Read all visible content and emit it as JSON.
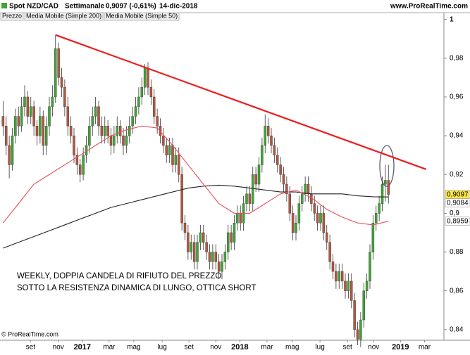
{
  "chart_data": {
    "type": "candlestick",
    "title": "Spot NZD/CAD",
    "period": "Settimanale",
    "last_quote": "0,9097 (-0,61%)",
    "date": "14-dic-2018",
    "source": "www.ProRealTime.com",
    "copyright": "© ProRealTime.com",
    "price_name": "Prezzo",
    "up_color": "#3fa535",
    "down_color": "#b4573f",
    "ylim": [
      0.8345,
      1.0035
    ],
    "yticks": [
      1,
      {
        "value": 0.98,
        "label": "0,98"
      },
      {
        "value": 0.96,
        "label": "0,96"
      },
      {
        "value": 0.94,
        "label": "0,94"
      },
      {
        "value": 0.92,
        "label": "0,92"
      },
      {
        "value": 0.9,
        "label": "0,9"
      },
      {
        "value": 0.88,
        "label": "0,88"
      },
      {
        "value": 0.86,
        "label": "0,86"
      },
      {
        "value": 0.84,
        "label": "0,84"
      }
    ],
    "xlim": [
      -1,
      143
    ],
    "xticks": [
      {
        "value": 8.9,
        "label": "set"
      },
      {
        "value": 17.9,
        "label": "nov"
      },
      {
        "value": 25.7,
        "label": "2017"
      },
      {
        "value": 34.4,
        "label": "mar"
      },
      {
        "value": 42.4,
        "label": "mag"
      },
      {
        "value": 51.6,
        "label": "lug"
      },
      {
        "value": 60.3,
        "label": "set"
      },
      {
        "value": 69.0,
        "label": "nov"
      },
      {
        "value": 76.8,
        "label": "2018"
      },
      {
        "value": 85.6,
        "label": "mar"
      },
      {
        "value": 93.8,
        "label": "mag"
      },
      {
        "value": 102.8,
        "label": "lug"
      },
      {
        "value": 111.7,
        "label": "set"
      },
      {
        "value": 120.2,
        "label": "nov"
      },
      {
        "value": 128.9,
        "label": "2019"
      },
      {
        "value": 136.7,
        "label": "mar"
      }
    ],
    "ohlc": [
      [
        0.95,
        0.958,
        0.94,
        0.945
      ],
      [
        0.945,
        0.95,
        0.93,
        0.935
      ],
      [
        0.935,
        0.94,
        0.918,
        0.925
      ],
      [
        0.925,
        0.944,
        0.922,
        0.94
      ],
      [
        0.94,
        0.954,
        0.936,
        0.95
      ],
      [
        0.95,
        0.955,
        0.94,
        0.945
      ],
      [
        0.945,
        0.96,
        0.942,
        0.955
      ],
      [
        0.955,
        0.966,
        0.95,
        0.96
      ],
      [
        0.96,
        0.963,
        0.946,
        0.95
      ],
      [
        0.95,
        0.96,
        0.946,
        0.955
      ],
      [
        0.955,
        0.958,
        0.94,
        0.945
      ],
      [
        0.945,
        0.948,
        0.935,
        0.94
      ],
      [
        0.94,
        0.955,
        0.936,
        0.95
      ],
      [
        0.95,
        0.953,
        0.93,
        0.935
      ],
      [
        0.935,
        0.95,
        0.93,
        0.945
      ],
      [
        0.945,
        0.96,
        0.94,
        0.955
      ],
      [
        0.955,
        0.966,
        0.95,
        0.96
      ],
      [
        0.96,
        0.992,
        0.957,
        0.985
      ],
      [
        0.985,
        0.988,
        0.966,
        0.97
      ],
      [
        0.97,
        0.975,
        0.96,
        0.965
      ],
      [
        0.965,
        0.969,
        0.95,
        0.955
      ],
      [
        0.955,
        0.96,
        0.94,
        0.945
      ],
      [
        0.945,
        0.95,
        0.936,
        0.94
      ],
      [
        0.94,
        0.944,
        0.926,
        0.93
      ],
      [
        0.93,
        0.934,
        0.92,
        0.925
      ],
      [
        0.925,
        0.928,
        0.916,
        0.92
      ],
      [
        0.92,
        0.934,
        0.917,
        0.93
      ],
      [
        0.93,
        0.94,
        0.926,
        0.935
      ],
      [
        0.935,
        0.95,
        0.931,
        0.945
      ],
      [
        0.945,
        0.955,
        0.94,
        0.95
      ],
      [
        0.95,
        0.96,
        0.946,
        0.955
      ],
      [
        0.955,
        0.958,
        0.94,
        0.945
      ],
      [
        0.945,
        0.95,
        0.936,
        0.94
      ],
      [
        0.94,
        0.95,
        0.936,
        0.945
      ],
      [
        0.945,
        0.948,
        0.936,
        0.94
      ],
      [
        0.94,
        0.944,
        0.93,
        0.935
      ],
      [
        0.935,
        0.945,
        0.931,
        0.94
      ],
      [
        0.94,
        0.95,
        0.936,
        0.945
      ],
      [
        0.945,
        0.948,
        0.936,
        0.94
      ],
      [
        0.94,
        0.944,
        0.93,
        0.935
      ],
      [
        0.935,
        0.945,
        0.931,
        0.94
      ],
      [
        0.94,
        0.95,
        0.936,
        0.945
      ],
      [
        0.945,
        0.955,
        0.941,
        0.95
      ],
      [
        0.95,
        0.96,
        0.946,
        0.955
      ],
      [
        0.955,
        0.965,
        0.951,
        0.96
      ],
      [
        0.96,
        0.97,
        0.956,
        0.965
      ],
      [
        0.965,
        0.977,
        0.961,
        0.975
      ],
      [
        0.975,
        0.978,
        0.961,
        0.965
      ],
      [
        0.965,
        0.969,
        0.956,
        0.96
      ],
      [
        0.96,
        0.964,
        0.946,
        0.95
      ],
      [
        0.95,
        0.954,
        0.941,
        0.945
      ],
      [
        0.945,
        0.949,
        0.936,
        0.94
      ],
      [
        0.94,
        0.944,
        0.931,
        0.935
      ],
      [
        0.935,
        0.939,
        0.926,
        0.93
      ],
      [
        0.93,
        0.939,
        0.926,
        0.935
      ],
      [
        0.935,
        0.939,
        0.921,
        0.925
      ],
      [
        0.925,
        0.934,
        0.921,
        0.93
      ],
      [
        0.93,
        0.934,
        0.916,
        0.92
      ],
      [
        0.92,
        0.924,
        0.891,
        0.895
      ],
      [
        0.895,
        0.899,
        0.886,
        0.89
      ],
      [
        0.89,
        0.894,
        0.876,
        0.88
      ],
      [
        0.88,
        0.889,
        0.876,
        0.885
      ],
      [
        0.885,
        0.889,
        0.871,
        0.875
      ],
      [
        0.875,
        0.889,
        0.871,
        0.885
      ],
      [
        0.885,
        0.894,
        0.881,
        0.89
      ],
      [
        0.89,
        0.894,
        0.881,
        0.885
      ],
      [
        0.885,
        0.889,
        0.876,
        0.88
      ],
      [
        0.88,
        0.884,
        0.871,
        0.875
      ],
      [
        0.875,
        0.884,
        0.871,
        0.88
      ],
      [
        0.88,
        0.884,
        0.871,
        0.875
      ],
      [
        0.875,
        0.879,
        0.866,
        0.87
      ],
      [
        0.87,
        0.879,
        0.866,
        0.875
      ],
      [
        0.875,
        0.884,
        0.871,
        0.88
      ],
      [
        0.88,
        0.894,
        0.876,
        0.89
      ],
      [
        0.89,
        0.894,
        0.881,
        0.885
      ],
      [
        0.885,
        0.899,
        0.881,
        0.895
      ],
      [
        0.895,
        0.904,
        0.891,
        0.9
      ],
      [
        0.9,
        0.904,
        0.891,
        0.895
      ],
      [
        0.895,
        0.909,
        0.891,
        0.905
      ],
      [
        0.905,
        0.914,
        0.901,
        0.91
      ],
      [
        0.91,
        0.914,
        0.901,
        0.905
      ],
      [
        0.905,
        0.924,
        0.901,
        0.92
      ],
      [
        0.92,
        0.924,
        0.911,
        0.915
      ],
      [
        0.915,
        0.929,
        0.911,
        0.925
      ],
      [
        0.925,
        0.939,
        0.921,
        0.935
      ],
      [
        0.935,
        0.951,
        0.931,
        0.945
      ],
      [
        0.945,
        0.949,
        0.936,
        0.94
      ],
      [
        0.94,
        0.944,
        0.931,
        0.935
      ],
      [
        0.935,
        0.939,
        0.926,
        0.93
      ],
      [
        0.93,
        0.934,
        0.921,
        0.925
      ],
      [
        0.925,
        0.929,
        0.916,
        0.92
      ],
      [
        0.92,
        0.924,
        0.911,
        0.915
      ],
      [
        0.915,
        0.919,
        0.906,
        0.91
      ],
      [
        0.91,
        0.914,
        0.896,
        0.9
      ],
      [
        0.9,
        0.904,
        0.886,
        0.89
      ],
      [
        0.89,
        0.899,
        0.886,
        0.895
      ],
      [
        0.895,
        0.909,
        0.891,
        0.905
      ],
      [
        0.905,
        0.914,
        0.901,
        0.91
      ],
      [
        0.91,
        0.919,
        0.906,
        0.915
      ],
      [
        0.915,
        0.919,
        0.906,
        0.91
      ],
      [
        0.91,
        0.914,
        0.901,
        0.905
      ],
      [
        0.905,
        0.909,
        0.896,
        0.9
      ],
      [
        0.9,
        0.904,
        0.891,
        0.895
      ],
      [
        0.895,
        0.904,
        0.891,
        0.9
      ],
      [
        0.9,
        0.904,
        0.886,
        0.89
      ],
      [
        0.89,
        0.894,
        0.881,
        0.885
      ],
      [
        0.885,
        0.889,
        0.871,
        0.875
      ],
      [
        0.875,
        0.879,
        0.866,
        0.87
      ],
      [
        0.87,
        0.874,
        0.861,
        0.865
      ],
      [
        0.865,
        0.874,
        0.861,
        0.87
      ],
      [
        0.87,
        0.874,
        0.861,
        0.865
      ],
      [
        0.865,
        0.869,
        0.856,
        0.86
      ],
      [
        0.86,
        0.869,
        0.856,
        0.865
      ],
      [
        0.865,
        0.869,
        0.851,
        0.855
      ],
      [
        0.855,
        0.859,
        0.836,
        0.84
      ],
      [
        0.84,
        0.844,
        0.832,
        0.835
      ],
      [
        0.835,
        0.849,
        0.831,
        0.845
      ],
      [
        0.845,
        0.864,
        0.841,
        0.86
      ],
      [
        0.86,
        0.869,
        0.856,
        0.865
      ],
      [
        0.865,
        0.884,
        0.861,
        0.88
      ],
      [
        0.88,
        0.899,
        0.876,
        0.895
      ],
      [
        0.895,
        0.904,
        0.891,
        0.9
      ],
      [
        0.9,
        0.909,
        0.896,
        0.905
      ],
      [
        0.905,
        0.919,
        0.901,
        0.915
      ],
      [
        0.915,
        0.925,
        0.906,
        0.917
      ],
      [
        0.917,
        0.925,
        0.905,
        0.9097
      ]
    ],
    "series": [
      {
        "name": "Media Mobile (Simple 200)",
        "color": "#222222",
        "x": [
          0,
          5,
          10,
          15,
          20,
          25,
          30,
          35,
          40,
          45,
          50,
          55,
          60,
          65,
          70,
          75,
          80,
          85,
          90,
          95,
          100,
          105,
          110,
          115,
          120,
          125
        ],
        "values": [
          0.882,
          0.885,
          0.888,
          0.891,
          0.894,
          0.897,
          0.9,
          0.903,
          0.905,
          0.907,
          0.909,
          0.911,
          0.913,
          0.914,
          0.9145,
          0.914,
          0.913,
          0.912,
          0.911,
          0.911,
          0.91,
          0.91,
          0.91,
          0.909,
          0.9085,
          0.9084
        ]
      },
      {
        "name": "Media Mobile (Simple 50)",
        "color": "#e8505b",
        "x": [
          0,
          5,
          10,
          15,
          20,
          25,
          30,
          35,
          40,
          45,
          50,
          55,
          60,
          65,
          70,
          75,
          80,
          85,
          90,
          95,
          100,
          105,
          110,
          115,
          120,
          125
        ],
        "values": [
          0.895,
          0.905,
          0.915,
          0.92,
          0.925,
          0.93,
          0.935,
          0.94,
          0.943,
          0.945,
          0.944,
          0.935,
          0.925,
          0.915,
          0.905,
          0.9,
          0.9,
          0.905,
          0.91,
          0.912,
          0.908,
          0.902,
          0.898,
          0.895,
          0.894,
          0.8959
        ]
      }
    ],
    "trendline": {
      "color": "#ee1c1c",
      "x": [
        17,
        137.2
      ],
      "y": [
        0.992,
        0.9227
      ]
    },
    "price_labels": [
      {
        "value": 0.9097,
        "label": "0,9097",
        "color": "#000000",
        "background": "#ffe74c"
      },
      {
        "value": 0.9084,
        "label": "0,9084",
        "color": "#000000",
        "background": "#ffffff"
      },
      {
        "value": 0.8959,
        "label": "0,8959",
        "color": "#e8505b",
        "background": "#ffffff"
      }
    ],
    "annotation": [
      "WEEKLY, DOPPIA CANDELA DI RIFIUTO DEL PREZZO",
      "SOTTO LA RESISTENZA DINAMICA DI LUNGO, OTTICA SHORT"
    ]
  }
}
